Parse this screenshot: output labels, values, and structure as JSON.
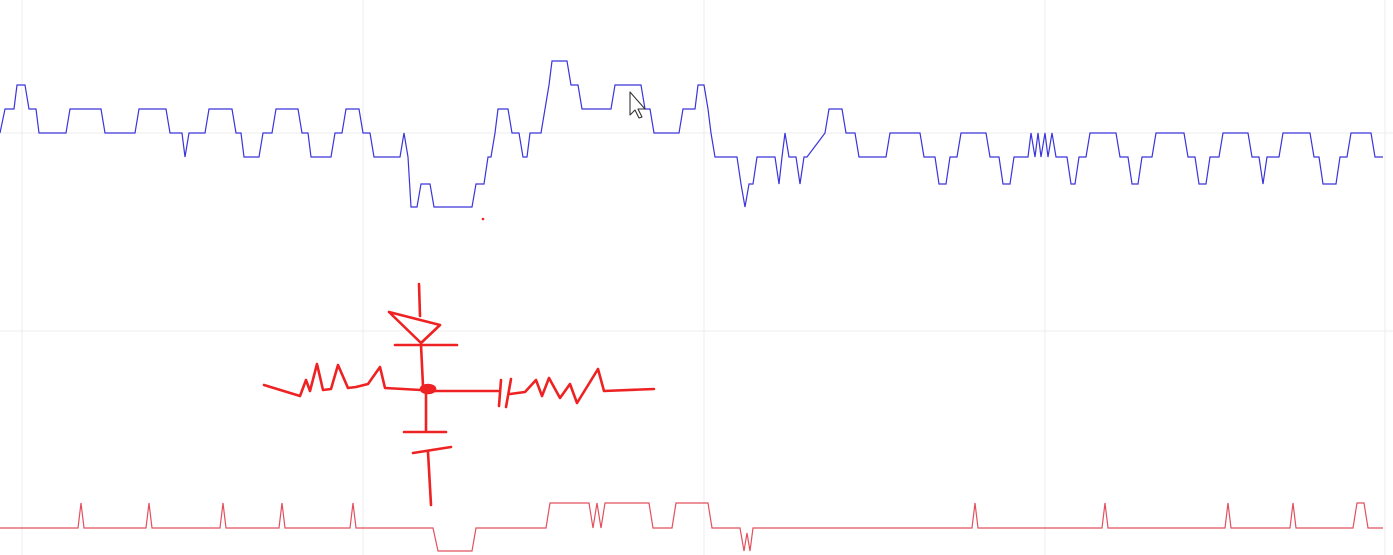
{
  "colors": {
    "background": "#ffffff",
    "grid": "#ececec",
    "signal_top": "#3b35d9",
    "signal_bottom": "#e2505e",
    "ink": "#ee2222",
    "cursor_fill": "#ffffff",
    "cursor_stroke": "#333333"
  },
  "icons": {
    "cursor": "mouse-pointer-icon"
  },
  "overlay": {
    "description_kind": "hand-drawn-circuit-sketch"
  }
}
